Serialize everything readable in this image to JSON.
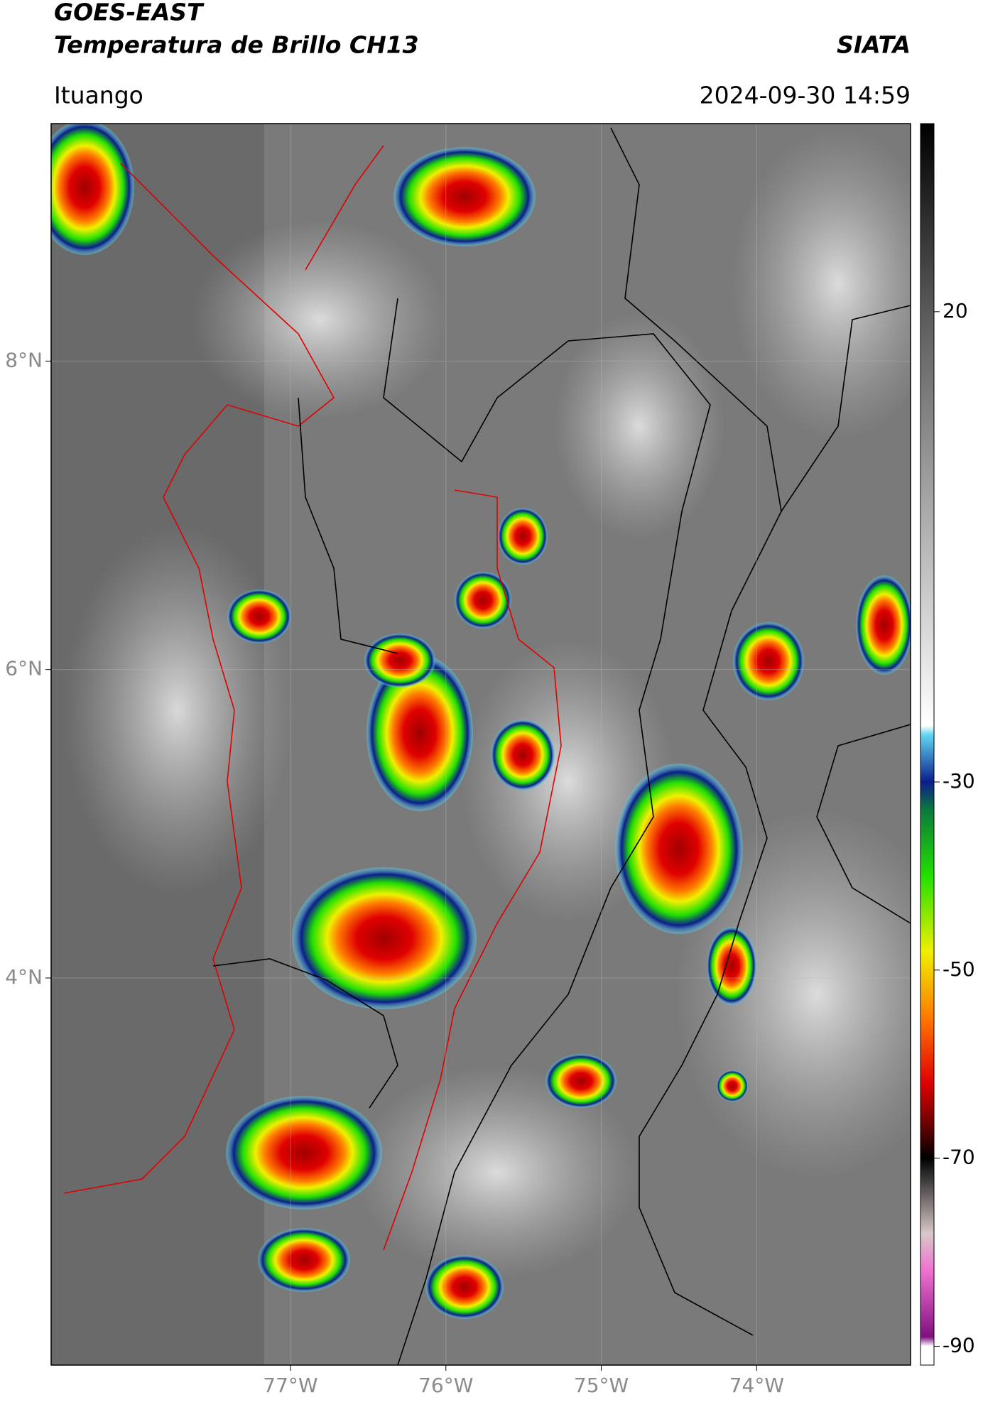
{
  "header": {
    "satellite": "GOES-EAST",
    "product": "Temperatura de Brillo CH13",
    "agency": "SIATA",
    "location": "Ituango",
    "datetime": "2024-09-30 14:59"
  },
  "map": {
    "xlim": [
      -78.54,
      -73.01
    ],
    "ylim": [
      1.49,
      9.54
    ],
    "xticks": [
      {
        "value": -77,
        "label": "77°W"
      },
      {
        "value": -76,
        "label": "76°W"
      },
      {
        "value": -75,
        "label": "75°W"
      },
      {
        "value": -74,
        "label": "74°W"
      }
    ],
    "yticks": [
      {
        "value": 8,
        "label": "8°N"
      },
      {
        "value": 6,
        "label": "6°N"
      },
      {
        "value": 4,
        "label": "4°N"
      }
    ],
    "grid": true
  },
  "colorbar": {
    "lim": [
      -92,
      40
    ],
    "ticks": [
      20,
      -30,
      -50,
      -70,
      -90
    ],
    "stops": [
      {
        "value": 40,
        "color": "#000000"
      },
      {
        "value": 20,
        "color": "#5a5a5a"
      },
      {
        "value": -24,
        "color": "#ffffff"
      },
      {
        "value": -25,
        "color": "#5fd6f0"
      },
      {
        "value": -30,
        "color": "#0a1e8c"
      },
      {
        "value": -33,
        "color": "#0c7a3c"
      },
      {
        "value": -40,
        "color": "#22e000"
      },
      {
        "value": -48,
        "color": "#f0f000"
      },
      {
        "value": -55,
        "color": "#ff7a00"
      },
      {
        "value": -62,
        "color": "#e00000"
      },
      {
        "value": -67,
        "color": "#5a0000"
      },
      {
        "value": -70,
        "color": "#000000"
      },
      {
        "value": -78,
        "color": "#d8c8c8"
      },
      {
        "value": -82,
        "color": "#f070d0"
      },
      {
        "value": -89,
        "color": "#801080"
      },
      {
        "value": -90,
        "color": "#ffffff"
      },
      {
        "value": -92,
        "color": "#ffffff"
      }
    ]
  }
}
